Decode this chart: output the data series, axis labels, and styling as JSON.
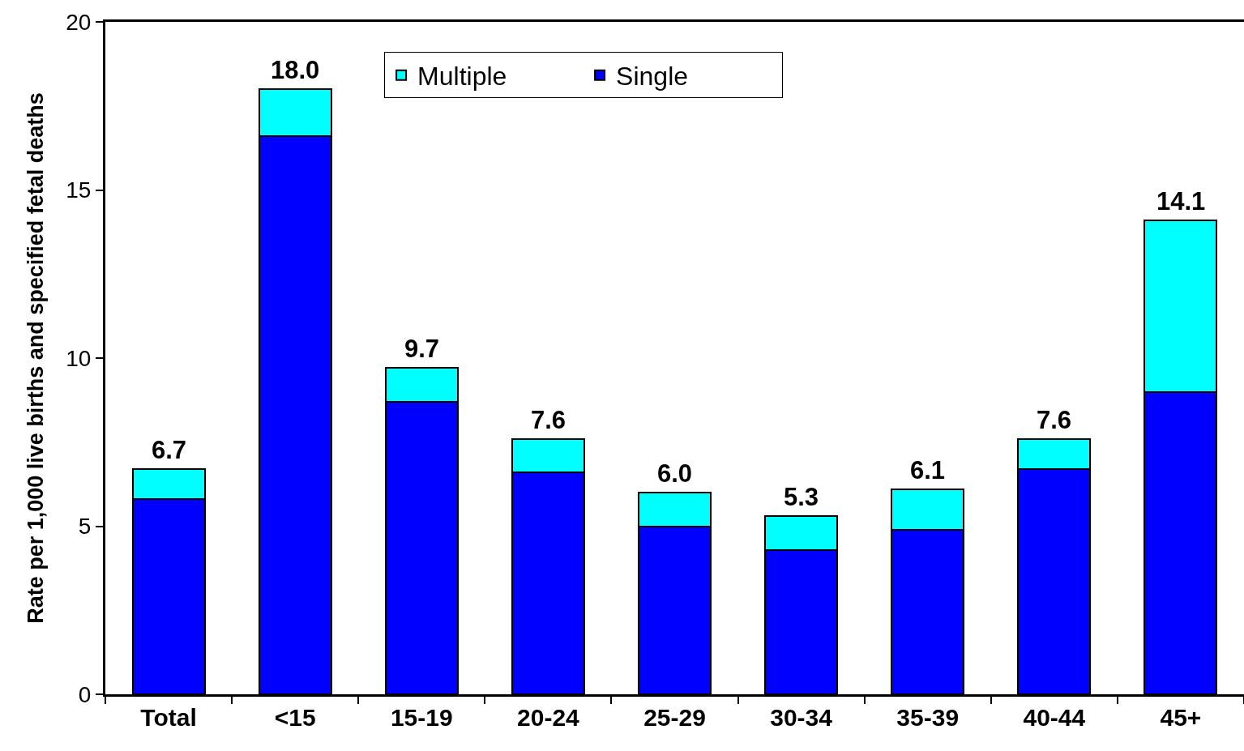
{
  "chart_data": {
    "type": "bar",
    "stacked": true,
    "categories": [
      "Total",
      "<15",
      "15-19",
      "20-24",
      "25-29",
      "30-34",
      "35-39",
      "40-44",
      "45+"
    ],
    "series": [
      {
        "name": "Single",
        "color": "#0000ff",
        "values": [
          5.8,
          16.6,
          8.7,
          6.6,
          5.0,
          4.3,
          4.9,
          6.7,
          9.0
        ]
      },
      {
        "name": "Multiple",
        "color": "#00ffff",
        "values": [
          0.9,
          1.4,
          1.0,
          1.0,
          1.0,
          1.0,
          1.2,
          0.9,
          5.1
        ]
      }
    ],
    "totals": [
      "6.7",
      "18.0",
      "9.7",
      "7.6",
      "6.0",
      "5.3",
      "6.1",
      "7.6",
      "14.1"
    ],
    "ylabel": "Rate per 1,000 live births and specified fetal deaths",
    "ylim": [
      0,
      20
    ],
    "yticks": [
      0,
      5,
      10,
      15,
      20
    ],
    "grid": false,
    "legend": "top"
  }
}
